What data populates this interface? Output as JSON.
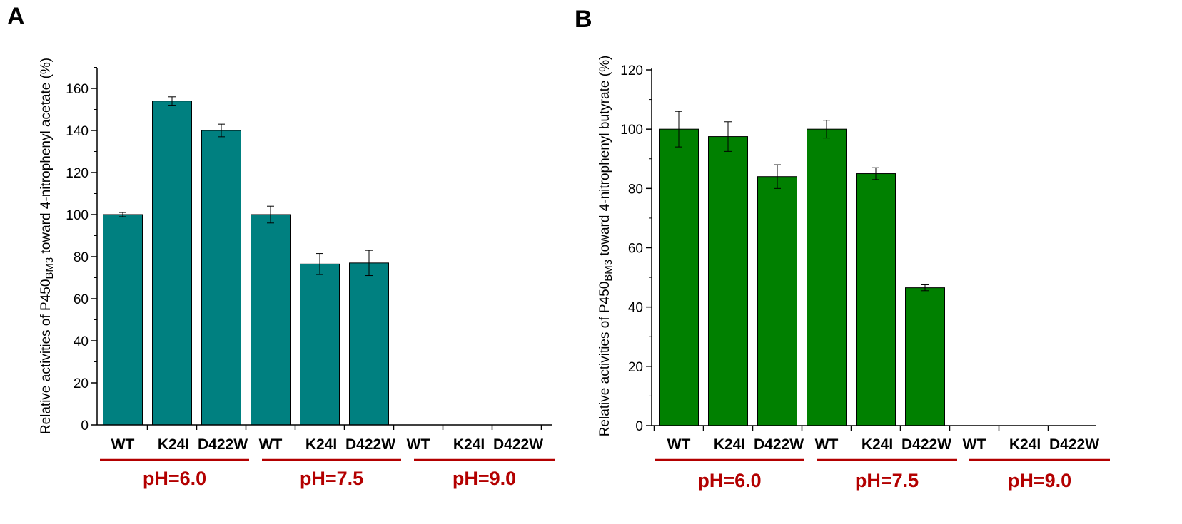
{
  "chart_data": [
    {
      "panel": "A",
      "type": "bar",
      "ylabel_main": "Relative activities of P450",
      "ylabel_sub": "BM3",
      "ylabel_rest": " toward 4-nitrophenyl acetate (%)",
      "ylim": [
        0,
        170
      ],
      "yticks": [
        0,
        20,
        40,
        60,
        80,
        100,
        120,
        140,
        160
      ],
      "bar_color": "#008080",
      "categories": [
        "WT",
        "K24I",
        "D422W",
        "WT",
        "K24I",
        "D422W",
        "WT",
        "K24I",
        "D422W"
      ],
      "values": [
        100,
        154,
        140,
        100,
        76.5,
        77,
        0,
        0,
        0
      ],
      "errors": [
        1,
        2,
        3,
        4,
        5,
        6,
        0,
        0,
        0
      ],
      "groups": [
        {
          "label": "pH=6.0",
          "members": [
            0,
            1,
            2
          ]
        },
        {
          "label": "pH=7.5",
          "members": [
            3,
            4,
            5
          ]
        },
        {
          "label": "pH=9.0",
          "members": [
            6,
            7,
            8
          ]
        }
      ]
    },
    {
      "panel": "B",
      "type": "bar",
      "ylabel_main": "Relative activities of P450",
      "ylabel_sub": "BM3",
      "ylabel_rest": " toward 4-nitrophenyl butyrate (%)",
      "ylim": [
        0,
        120
      ],
      "yticks": [
        0,
        20,
        40,
        60,
        80,
        100,
        120
      ],
      "bar_color": "#008000",
      "categories": [
        "WT",
        "K24I",
        "D422W",
        "WT",
        "K24I",
        "D422W",
        "WT",
        "K24I",
        "D422W"
      ],
      "values": [
        100,
        97.5,
        84,
        100,
        85,
        46.5,
        0,
        0,
        0
      ],
      "errors": [
        6,
        5,
        4,
        3,
        2,
        1,
        0,
        0,
        0
      ],
      "groups": [
        {
          "label": "pH=6.0",
          "members": [
            0,
            1,
            2
          ]
        },
        {
          "label": "pH=7.5",
          "members": [
            3,
            4,
            5
          ]
        },
        {
          "label": "pH=9.0",
          "members": [
            6,
            7,
            8
          ]
        }
      ]
    }
  ]
}
